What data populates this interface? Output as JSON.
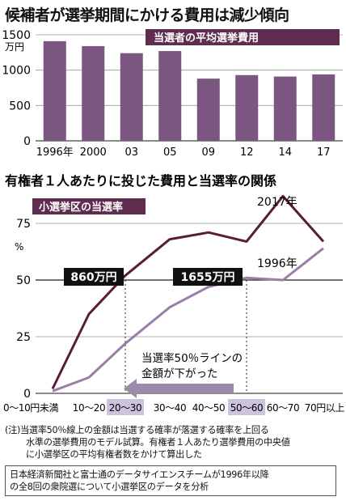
{
  "title": "候補者が選挙期間にかける費用は減少傾向",
  "chart_data": [
    {
      "type": "bar",
      "legend_label": "当選者の平均選挙費用",
      "unit_label": "万円",
      "categories": [
        "1996年",
        "2000",
        "03",
        "05",
        "09",
        "12",
        "14",
        "17"
      ],
      "values": [
        1410,
        1340,
        1240,
        1270,
        880,
        930,
        910,
        940
      ],
      "ylim": [
        0,
        1500
      ],
      "yticks": [
        "0",
        "500",
        "1000",
        "1500"
      ],
      "colors": {
        "bar": "#7b5680",
        "legend_bg": "#5e2d4f"
      }
    },
    {
      "type": "line",
      "title": "有権者１人あたりに投じた費用と当選率の関係",
      "legend_label": "小選挙区の当選率",
      "unit_label": "%",
      "categories": [
        "0～10円未満",
        "10～20",
        "20～30",
        "30～40",
        "40～50",
        "50～60",
        "60～70",
        "70円以上"
      ],
      "highlighted_categories": [
        2,
        5
      ],
      "ylim": [
        0,
        90
      ],
      "yticks": [
        "0",
        "25",
        "50",
        "75"
      ],
      "series": [
        {
          "name": "2017年",
          "values": [
            2,
            35,
            52,
            68,
            71,
            67,
            87,
            67
          ],
          "color": "#5a1b3a"
        },
        {
          "name": "1996年",
          "values": [
            1,
            7,
            22,
            38,
            47,
            51,
            50,
            64
          ],
          "color": "#9a7ea6"
        }
      ],
      "annotations": [
        {
          "text": "860万円",
          "category_index": 2
        },
        {
          "text": "1655万円",
          "category_index": 5
        }
      ],
      "arrow_label_line1": "当選率50％ラインの",
      "arrow_label_line2": "金額が下がった"
    }
  ],
  "note_line1": "(注)当選率50％線上の金額は当選する確率が落選する確率を上回る",
  "note_line2": "水準の選挙費用のモデル試算。有権者１人あたり選挙費用の中央値",
  "note_line3": "に小選挙区の平均有権者数をかけて算出した",
  "source_line1": "日本経済新聞社と富士通のデータサイエンスチームが1996年以降",
  "source_line2": "の全8回の衆院選について小選挙区のデータを分析"
}
